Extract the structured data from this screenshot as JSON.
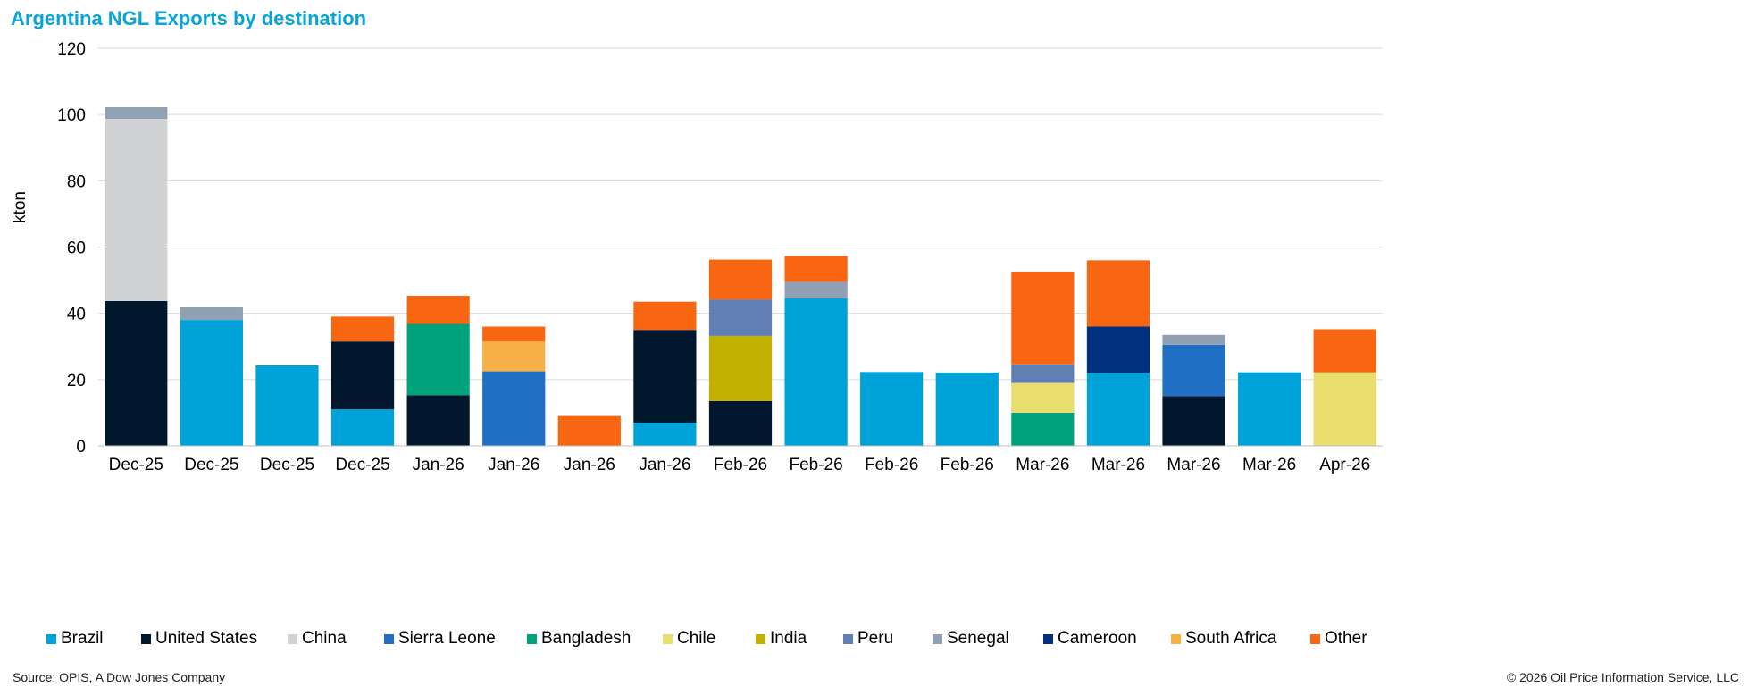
{
  "title": "Argentina NGL Exports by destination",
  "source": "Source: OPIS, A Dow Jones Company",
  "copyright": "© 2026 Oil Price Information Service, LLC",
  "colors": {
    "title": "#0aa3d6",
    "gridline": "#d9d9d9",
    "axis": "#bfbfbf"
  },
  "chart_data": {
    "type": "bar",
    "stacked": true,
    "title": "Argentina NGL Exports by destination",
    "xlabel": "",
    "ylabel": "kton",
    "ylim": [
      0,
      120
    ],
    "yticks": [
      0,
      20,
      40,
      60,
      80,
      100,
      120
    ],
    "grid": true,
    "legend_position": "bottom",
    "categories": [
      "Dec-25",
      "Dec-25",
      "Dec-25",
      "Dec-25",
      "Jan-26",
      "Jan-26",
      "Jan-26",
      "Jan-26",
      "Feb-26",
      "Feb-26",
      "Feb-26",
      "Feb-26",
      "Mar-26",
      "Mar-26",
      "Mar-26",
      "Mar-26",
      "Apr-26"
    ],
    "series": [
      {
        "name": "Brazil",
        "color": "#00a3d9",
        "values": [
          0,
          38,
          24.3,
          11,
          0,
          0,
          0,
          7,
          0,
          44.5,
          22.3,
          22.1,
          0,
          22,
          0,
          22.2,
          0
        ]
      },
      {
        "name": "United States",
        "color": "#00172e",
        "values": [
          43.7,
          0,
          0,
          20.5,
          15.3,
          0,
          0,
          28,
          13.5,
          0,
          0,
          0,
          0,
          0,
          15,
          0,
          0
        ]
      },
      {
        "name": "China",
        "color": "#d0d2d3",
        "values": [
          55,
          0,
          0,
          0,
          0,
          0,
          0,
          0,
          0,
          0,
          0,
          0,
          0,
          0,
          0,
          0,
          0
        ]
      },
      {
        "name": "Sierra Leone",
        "color": "#1f6fc5",
        "values": [
          0,
          0,
          0,
          0,
          0,
          22.5,
          0,
          0,
          0,
          0,
          0,
          0,
          0,
          0,
          15.5,
          0,
          0
        ]
      },
      {
        "name": "Bangladesh",
        "color": "#00a27b",
        "values": [
          0,
          0,
          0,
          0,
          21.5,
          0,
          0,
          0,
          0,
          0,
          0,
          0,
          10,
          0,
          0,
          0,
          0
        ]
      },
      {
        "name": "Chile",
        "color": "#e8dd6e",
        "values": [
          0,
          0,
          0,
          0,
          0,
          0,
          0,
          0,
          0,
          0,
          0,
          0,
          9,
          0,
          0,
          0,
          22.2
        ]
      },
      {
        "name": "India",
        "color": "#c2b100",
        "values": [
          0,
          0,
          0,
          0,
          0,
          0,
          0,
          0,
          19.7,
          0,
          0,
          0,
          0,
          0,
          0,
          0,
          0
        ]
      },
      {
        "name": "Peru",
        "color": "#6080b3",
        "values": [
          0,
          0,
          0,
          0,
          0,
          0,
          0,
          0,
          11,
          0,
          0,
          0,
          5.6,
          0,
          0,
          0,
          0
        ]
      },
      {
        "name": "Senegal",
        "color": "#8fa1b3",
        "values": [
          3.5,
          3.8,
          0,
          0,
          0,
          0,
          0,
          0,
          0,
          5,
          0,
          0,
          0,
          0,
          3,
          0,
          0
        ]
      },
      {
        "name": "Cameroon",
        "color": "#00307f",
        "values": [
          0,
          0,
          0,
          0,
          0,
          0,
          0,
          0,
          0,
          0,
          0,
          0,
          0,
          14,
          0,
          0,
          0
        ]
      },
      {
        "name": "South Africa",
        "color": "#f7b045",
        "values": [
          0,
          0,
          0,
          0,
          0,
          9,
          0,
          0,
          0,
          0,
          0,
          0,
          0,
          0,
          0,
          0,
          0
        ]
      },
      {
        "name": "Other",
        "color": "#f86612",
        "values": [
          0,
          0,
          0,
          7.5,
          8.5,
          4.5,
          9,
          8.5,
          12,
          7.8,
          0,
          0,
          28,
          20,
          0,
          0,
          13
        ]
      }
    ]
  }
}
